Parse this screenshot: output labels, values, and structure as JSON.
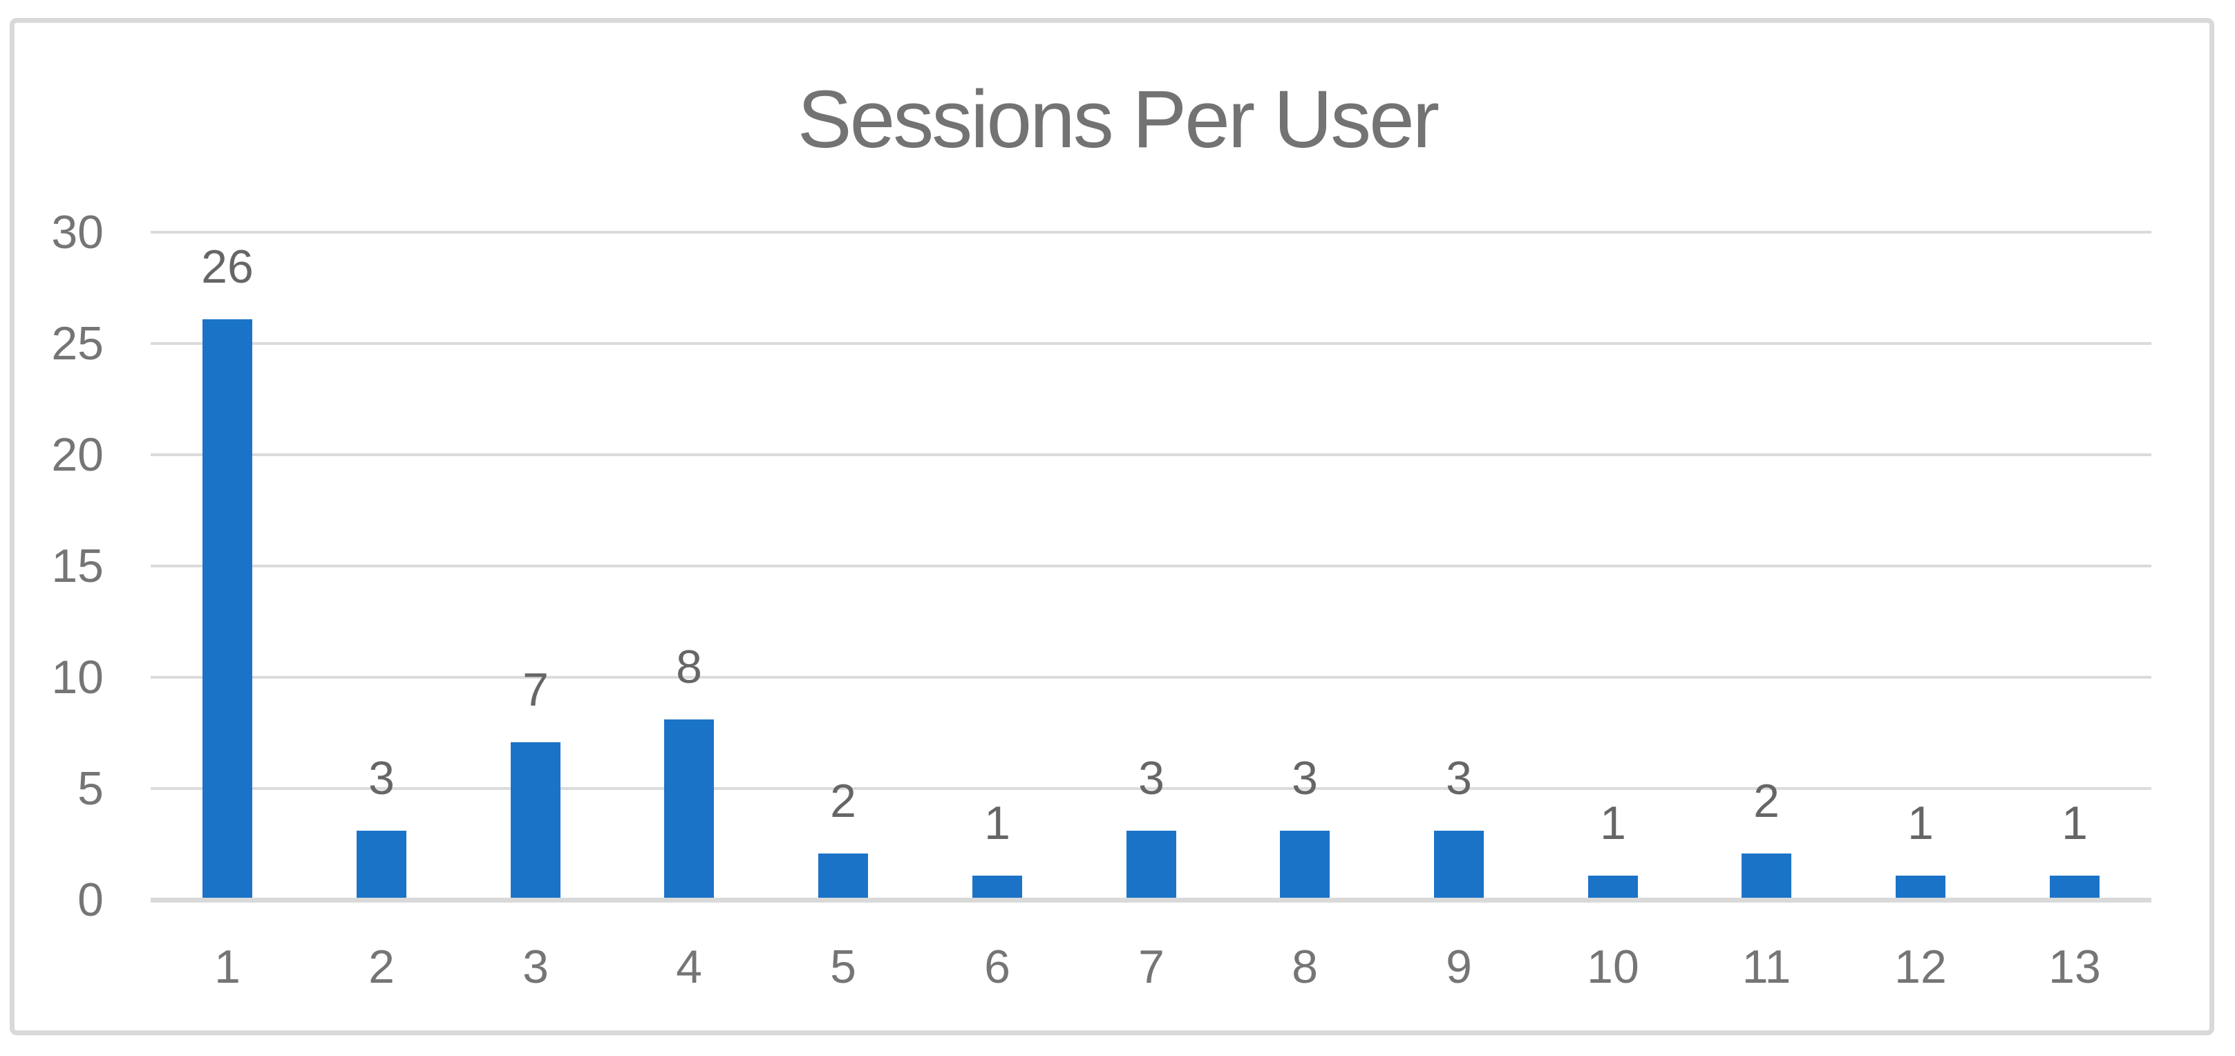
{
  "chart_data": {
    "type": "bar",
    "title": "Sessions Per User",
    "categories": [
      "1",
      "2",
      "3",
      "4",
      "5",
      "6",
      "7",
      "8",
      "9",
      "10",
      "11",
      "12",
      "13"
    ],
    "values": [
      26,
      3,
      7,
      8,
      2,
      1,
      3,
      3,
      3,
      1,
      2,
      1,
      1
    ],
    "data_labels": [
      "26",
      "3",
      "7",
      "8",
      "2",
      "1",
      "3",
      "3",
      "3",
      "1",
      "2",
      "1",
      "1"
    ],
    "y_ticks": [
      "0",
      "5",
      "10",
      "15",
      "20",
      "25",
      "30"
    ],
    "y_tick_values": [
      0,
      5,
      10,
      15,
      20,
      25,
      30
    ],
    "ylim": [
      0,
      30
    ],
    "xlabel": "",
    "ylabel": "",
    "legend": "none",
    "grid": "horizontal",
    "show_data_labels": true,
    "colors": {
      "bar": "#1B73C8",
      "gridline": "#DBDBDB",
      "axis_line": "#D9D9D9",
      "border": "#D9D9D9",
      "title_text": "#737373",
      "tick_text": "#757575",
      "data_label_text": "#666666",
      "background": "#FFFFFF"
    }
  }
}
